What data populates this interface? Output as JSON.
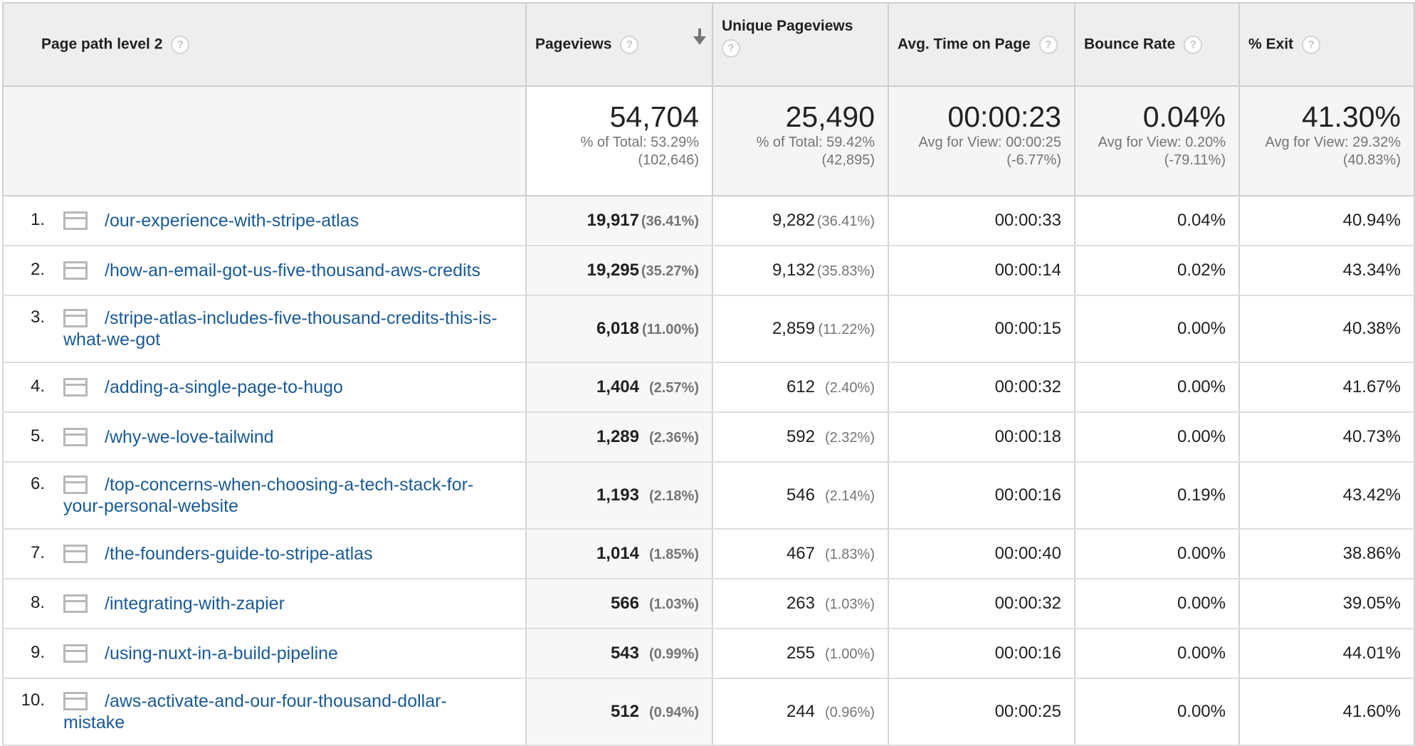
{
  "columns": {
    "path": "Page path level 2",
    "pageviews": "Pageviews",
    "unique_pageviews": "Unique Pageviews",
    "avg_time": "Avg. Time on Page",
    "bounce_rate": "Bounce Rate",
    "exit": "% Exit",
    "help_glyph": "?"
  },
  "totals": {
    "pageviews": {
      "value": "54,704",
      "line1": "% of Total: 53.29%",
      "line2": "(102,646)"
    },
    "unique_pageviews": {
      "value": "25,490",
      "line1": "% of Total: 59.42%",
      "line2": "(42,895)"
    },
    "avg_time": {
      "value": "00:00:23",
      "line1": "Avg for View: 00:00:25",
      "line2": "(-6.77%)"
    },
    "bounce_rate": {
      "value": "0.04%",
      "line1": "Avg for View: 0.20%",
      "line2": "(-79.11%)"
    },
    "exit": {
      "value": "41.30%",
      "line1": "Avg for View: 29.32%",
      "line2": "(40.83%)"
    }
  },
  "rows": [
    {
      "rank": "1.",
      "path": "/our-experience-with-stripe-atlas",
      "pageviews": "19,917",
      "pv_pct": "(36.41%)",
      "upv": "9,282",
      "upv_pct": "(36.41%)",
      "time": "00:00:33",
      "bounce": "0.04%",
      "exit": "40.94%"
    },
    {
      "rank": "2.",
      "path": "/how-an-email-got-us-five-thousand-aws-credits",
      "pageviews": "19,295",
      "pv_pct": "(35.27%)",
      "upv": "9,132",
      "upv_pct": "(35.83%)",
      "time": "00:00:14",
      "bounce": "0.02%",
      "exit": "43.34%"
    },
    {
      "rank": "3.",
      "path": "/stripe-atlas-includes-five-thousand-credits-this-is-what-we-got",
      "pageviews": "6,018",
      "pv_pct": "(11.00%)",
      "upv": "2,859",
      "upv_pct": "(11.22%)",
      "time": "00:00:15",
      "bounce": "0.00%",
      "exit": "40.38%"
    },
    {
      "rank": "4.",
      "path": "/adding-a-single-page-to-hugo",
      "pageviews": "1,404",
      "pv_pct": "(2.57%)",
      "upv": "612",
      "upv_pct": "(2.40%)",
      "time": "00:00:32",
      "bounce": "0.00%",
      "exit": "41.67%"
    },
    {
      "rank": "5.",
      "path": "/why-we-love-tailwind",
      "pageviews": "1,289",
      "pv_pct": "(2.36%)",
      "upv": "592",
      "upv_pct": "(2.32%)",
      "time": "00:00:18",
      "bounce": "0.00%",
      "exit": "40.73%"
    },
    {
      "rank": "6.",
      "path": "/top-concerns-when-choosing-a-tech-stack-for-your-personal-website",
      "pageviews": "1,193",
      "pv_pct": "(2.18%)",
      "upv": "546",
      "upv_pct": "(2.14%)",
      "time": "00:00:16",
      "bounce": "0.19%",
      "exit": "43.42%"
    },
    {
      "rank": "7.",
      "path": "/the-founders-guide-to-stripe-atlas",
      "pageviews": "1,014",
      "pv_pct": "(1.85%)",
      "upv": "467",
      "upv_pct": "(1.83%)",
      "time": "00:00:40",
      "bounce": "0.00%",
      "exit": "38.86%"
    },
    {
      "rank": "8.",
      "path": "/integrating-with-zapier",
      "pageviews": "566",
      "pv_pct": "(1.03%)",
      "upv": "263",
      "upv_pct": "(1.03%)",
      "time": "00:00:32",
      "bounce": "0.00%",
      "exit": "39.05%"
    },
    {
      "rank": "9.",
      "path": "/using-nuxt-in-a-build-pipeline",
      "pageviews": "543",
      "pv_pct": "(0.99%)",
      "upv": "255",
      "upv_pct": "(1.00%)",
      "time": "00:00:16",
      "bounce": "0.00%",
      "exit": "44.01%"
    },
    {
      "rank": "10.",
      "path": "/aws-activate-and-our-four-thousand-dollar-mistake",
      "pageviews": "512",
      "pv_pct": "(0.94%)",
      "upv": "244",
      "upv_pct": "(0.96%)",
      "time": "00:00:25",
      "bounce": "0.00%",
      "exit": "41.60%"
    }
  ]
}
